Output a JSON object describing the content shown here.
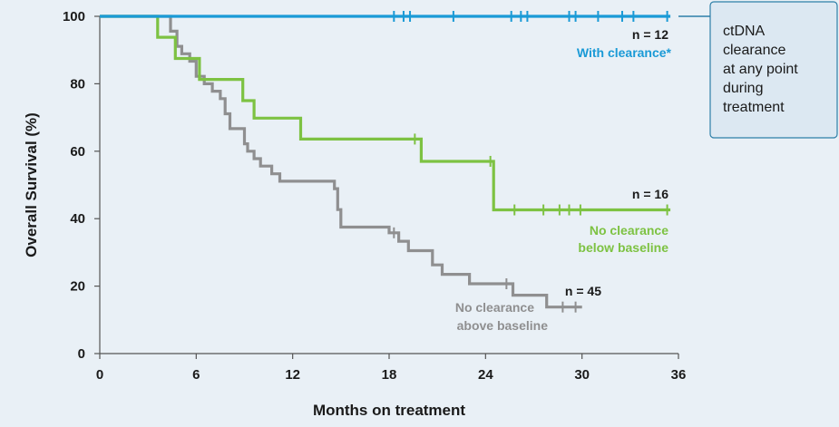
{
  "chart_data": {
    "type": "line",
    "step": true,
    "xlabel": "Months on treatment",
    "ylabel": "Overall Survival (%)",
    "xlim": [
      0,
      36
    ],
    "ylim": [
      0,
      100
    ],
    "xticks": [
      0,
      6,
      12,
      18,
      24,
      30,
      36
    ],
    "yticks": [
      0,
      20,
      40,
      60,
      80,
      100
    ],
    "grid": false,
    "series": [
      {
        "name": "With clearance*",
        "n_label": "n = 12",
        "color": "#1a9ad6",
        "points": [
          [
            0,
            100
          ],
          [
            35.5,
            100
          ]
        ],
        "censors": [
          18.3,
          18.9,
          19.3,
          22,
          25.6,
          26.2,
          26.6,
          29.2,
          29.6,
          31,
          32.5,
          33.2,
          35.3
        ]
      },
      {
        "name": "No clearance below baseline",
        "label_lines": [
          "No clearance",
          "below baseline"
        ],
        "n_label": "n = 16",
        "color": "#7dc242",
        "points": [
          [
            0,
            100
          ],
          [
            3.6,
            100
          ],
          [
            3.6,
            93.8
          ],
          [
            4.7,
            93.8
          ],
          [
            4.7,
            87.5
          ],
          [
            6.2,
            87.5
          ],
          [
            6.2,
            81.3
          ],
          [
            8.9,
            81.3
          ],
          [
            8.9,
            75
          ],
          [
            9.6,
            75
          ],
          [
            9.6,
            69.8
          ],
          [
            12.5,
            69.8
          ],
          [
            12.5,
            63.6
          ],
          [
            20,
            63.6
          ],
          [
            20,
            57
          ],
          [
            24.5,
            57
          ],
          [
            24.5,
            42.6
          ],
          [
            35.5,
            42.6
          ]
        ],
        "censors": [
          19.6,
          24.3,
          25.8,
          27.6,
          28.6,
          29.2,
          29.9,
          35.3
        ]
      },
      {
        "name": "No clearance above baseline",
        "label_lines": [
          "No clearance",
          "above baseline"
        ],
        "n_label": "n = 45",
        "color": "#8f8f90",
        "points": [
          [
            0,
            100
          ],
          [
            4.4,
            100
          ],
          [
            4.4,
            95.6
          ],
          [
            4.8,
            95.6
          ],
          [
            4.8,
            91.1
          ],
          [
            5.1,
            91.1
          ],
          [
            5.1,
            88.9
          ],
          [
            5.6,
            88.9
          ],
          [
            5.6,
            86.7
          ],
          [
            6.0,
            86.7
          ],
          [
            6.0,
            82.2
          ],
          [
            6.5,
            82.2
          ],
          [
            6.5,
            80
          ],
          [
            7.0,
            80
          ],
          [
            7.0,
            77.8
          ],
          [
            7.5,
            77.8
          ],
          [
            7.5,
            75.6
          ],
          [
            7.8,
            75.6
          ],
          [
            7.8,
            71.1
          ],
          [
            8.1,
            71.1
          ],
          [
            8.1,
            66.7
          ],
          [
            9.0,
            66.7
          ],
          [
            9.0,
            62.2
          ],
          [
            9.2,
            62.2
          ],
          [
            9.2,
            60
          ],
          [
            9.6,
            60
          ],
          [
            9.6,
            57.8
          ],
          [
            10.0,
            57.8
          ],
          [
            10.0,
            55.6
          ],
          [
            10.7,
            55.6
          ],
          [
            10.7,
            53.3
          ],
          [
            11.2,
            53.3
          ],
          [
            11.2,
            51.1
          ],
          [
            14.6,
            51.1
          ],
          [
            14.6,
            48.9
          ],
          [
            14.8,
            48.9
          ],
          [
            14.8,
            42.7
          ],
          [
            15.0,
            42.7
          ],
          [
            15.0,
            37.5
          ],
          [
            18.0,
            37.5
          ],
          [
            18.0,
            35.8
          ],
          [
            18.6,
            35.8
          ],
          [
            18.6,
            33.3
          ],
          [
            19.2,
            33.3
          ],
          [
            19.2,
            30.5
          ],
          [
            20.7,
            30.5
          ],
          [
            20.7,
            26.3
          ],
          [
            21.3,
            26.3
          ],
          [
            21.3,
            23.5
          ],
          [
            23.0,
            23.5
          ],
          [
            23.0,
            20.7
          ],
          [
            25.7,
            20.7
          ],
          [
            25.7,
            17.3
          ],
          [
            27.8,
            17.3
          ],
          [
            27.8,
            13.8
          ],
          [
            30.0,
            13.8
          ]
        ],
        "censors": [
          18.3,
          25.3,
          28.8,
          29.6
        ]
      }
    ],
    "annotation": {
      "lines": [
        "ctDNA",
        "clearance",
        "at any point",
        "during",
        "treatment"
      ],
      "box_fill": "#dce8f2",
      "border": "#2d7fa8"
    }
  }
}
